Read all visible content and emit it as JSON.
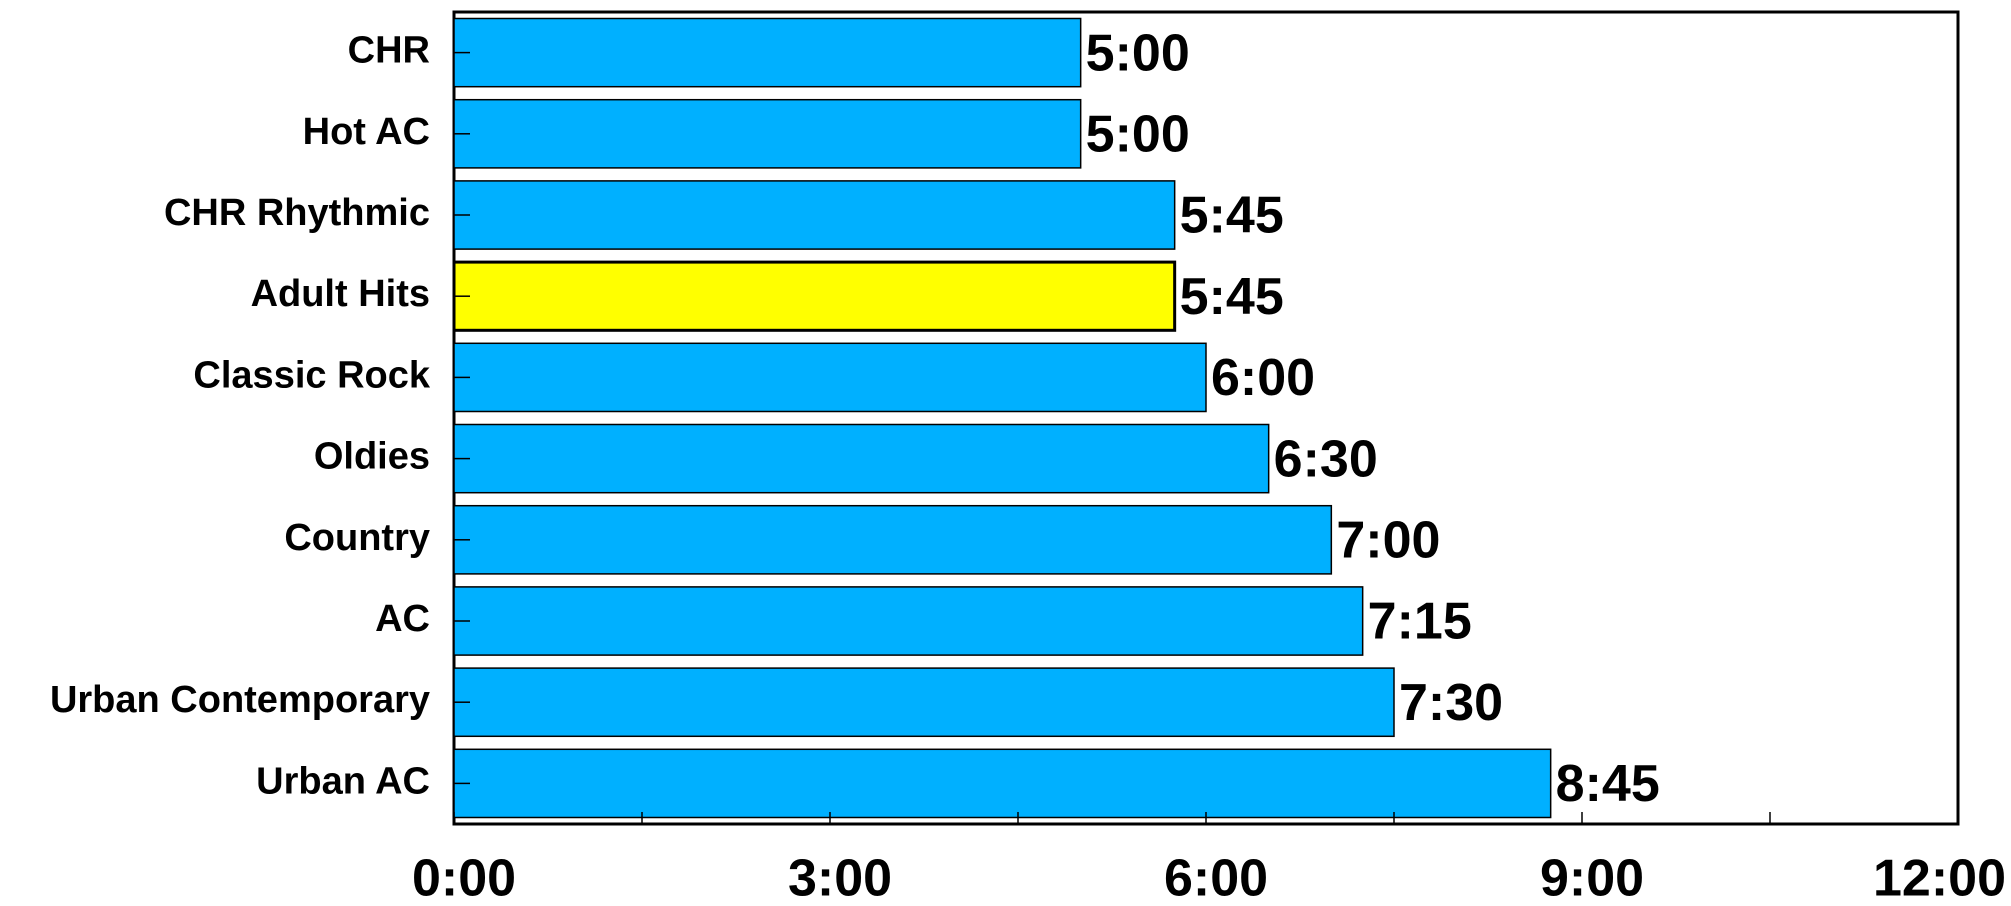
{
  "chart_data": {
    "type": "bar",
    "orientation": "horizontal",
    "categories": [
      "CHR",
      "Hot AC",
      "CHR Rhythmic",
      "Adult Hits",
      "Classic Rock",
      "Oldies",
      "Country",
      "AC",
      "Urban Contemporary",
      "Urban AC"
    ],
    "values": [
      5.0,
      5.0,
      5.75,
      5.75,
      6.0,
      6.5,
      7.0,
      7.25,
      7.5,
      8.75
    ],
    "value_labels": [
      "5:00",
      "5:00",
      "5:45",
      "5:45",
      "6:00",
      "6:30",
      "7:00",
      "7:15",
      "7:30",
      "8:45"
    ],
    "xlim": [
      0,
      12
    ],
    "x_unit": "hours:minutes",
    "x_ticks": [
      0,
      3,
      6,
      9,
      12
    ],
    "x_tick_labels": [
      "0:00",
      "3:00",
      "6:00",
      "9:00",
      "12:00"
    ],
    "title": "",
    "xlabel": "",
    "ylabel": "",
    "grid": false,
    "legend": "none",
    "colors": {
      "bar": "#00b0ff",
      "highlight": "#ffff00",
      "edge": "#000000"
    },
    "highlighted_category": "Adult Hits"
  }
}
